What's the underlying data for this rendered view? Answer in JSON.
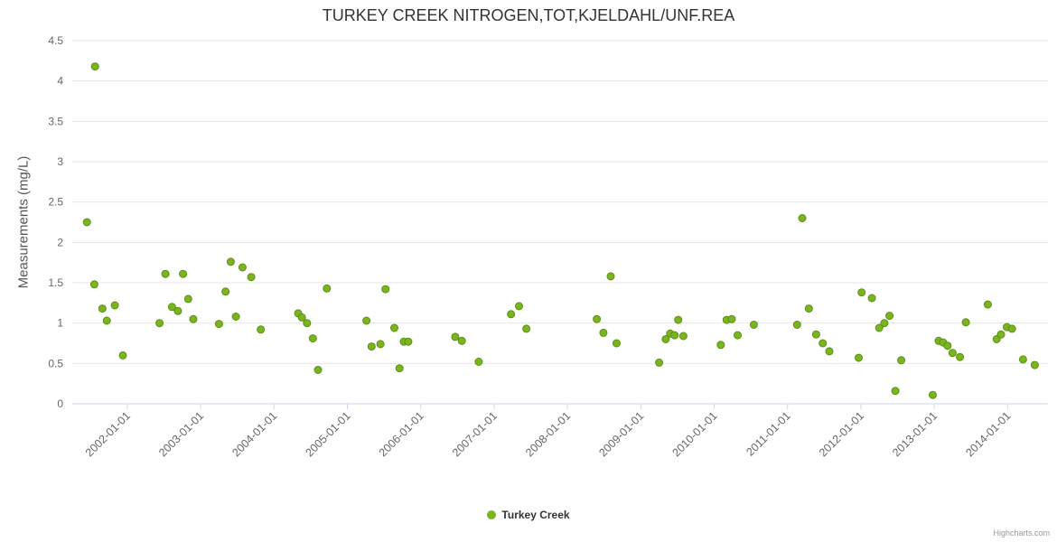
{
  "chart_data": {
    "type": "scatter",
    "title": "TURKEY CREEK NITROGEN,TOT,KJELDAHL/UNF.REA",
    "xlabel": "",
    "ylabel": "Measurements (mg/L)",
    "ylim": [
      0,
      4.5
    ],
    "yticks": [
      0,
      0.5,
      1,
      1.5,
      2,
      2.5,
      3,
      3.5,
      4,
      4.5
    ],
    "ytick_labels": [
      "0",
      "0.5",
      "1",
      "1.5",
      "2",
      "2.5",
      "3",
      "3.5",
      "4",
      "4.5"
    ],
    "xlim": [
      2001.25,
      2014.55
    ],
    "xticks": [
      2002,
      2003,
      2004,
      2005,
      2006,
      2007,
      2008,
      2009,
      2010,
      2011,
      2012,
      2013,
      2014
    ],
    "xtick_labels": [
      "2002-01-01",
      "2003-01-01",
      "2004-01-01",
      "2005-01-01",
      "2006-01-01",
      "2007-01-01",
      "2008-01-01",
      "2009-01-01",
      "2010-01-01",
      "2011-01-01",
      "2012-01-01",
      "2013-01-01",
      "2014-01-01"
    ],
    "grid": true,
    "legend_position": "bottom",
    "series": [
      {
        "name": "Turkey Creek",
        "color": "#7ab520",
        "points": [
          [
            2001.45,
            2.25
          ],
          [
            2001.55,
            1.48
          ],
          [
            2001.56,
            4.18
          ],
          [
            2001.66,
            1.18
          ],
          [
            2001.72,
            1.03
          ],
          [
            2001.83,
            1.22
          ],
          [
            2001.94,
            0.6
          ],
          [
            2002.44,
            1.0
          ],
          [
            2002.52,
            1.61
          ],
          [
            2002.61,
            1.2
          ],
          [
            2002.69,
            1.15
          ],
          [
            2002.76,
            1.61
          ],
          [
            2002.83,
            1.3
          ],
          [
            2002.9,
            1.05
          ],
          [
            2003.25,
            0.99
          ],
          [
            2003.34,
            1.39
          ],
          [
            2003.41,
            1.76
          ],
          [
            2003.48,
            1.08
          ],
          [
            2003.57,
            1.69
          ],
          [
            2003.69,
            1.57
          ],
          [
            2003.82,
            0.92
          ],
          [
            2004.33,
            1.12
          ],
          [
            2004.38,
            1.07
          ],
          [
            2004.45,
            1.0
          ],
          [
            2004.53,
            0.81
          ],
          [
            2004.6,
            0.42
          ],
          [
            2004.72,
            1.43
          ],
          [
            2005.26,
            1.03
          ],
          [
            2005.33,
            0.71
          ],
          [
            2005.45,
            0.74
          ],
          [
            2005.52,
            1.42
          ],
          [
            2005.64,
            0.94
          ],
          [
            2005.71,
            0.44
          ],
          [
            2005.77,
            0.77
          ],
          [
            2005.83,
            0.77
          ],
          [
            2006.47,
            0.83
          ],
          [
            2006.56,
            0.78
          ],
          [
            2006.79,
            0.52
          ],
          [
            2007.23,
            1.11
          ],
          [
            2007.34,
            1.21
          ],
          [
            2007.44,
            0.93
          ],
          [
            2008.4,
            1.05
          ],
          [
            2008.49,
            0.88
          ],
          [
            2008.59,
            1.58
          ],
          [
            2008.67,
            0.75
          ],
          [
            2009.25,
            0.51
          ],
          [
            2009.34,
            0.8
          ],
          [
            2009.4,
            0.87
          ],
          [
            2009.46,
            0.85
          ],
          [
            2009.51,
            1.04
          ],
          [
            2009.58,
            0.84
          ],
          [
            2010.09,
            0.73
          ],
          [
            2010.17,
            1.04
          ],
          [
            2010.24,
            1.05
          ],
          [
            2010.32,
            0.85
          ],
          [
            2010.54,
            0.98
          ],
          [
            2011.13,
            0.98
          ],
          [
            2011.2,
            2.3
          ],
          [
            2011.29,
            1.18
          ],
          [
            2011.39,
            0.86
          ],
          [
            2011.48,
            0.75
          ],
          [
            2011.57,
            0.65
          ],
          [
            2011.97,
            0.57
          ],
          [
            2012.01,
            1.38
          ],
          [
            2012.15,
            1.31
          ],
          [
            2012.25,
            0.94
          ],
          [
            2012.32,
            1.0
          ],
          [
            2012.39,
            1.09
          ],
          [
            2012.47,
            0.16
          ],
          [
            2012.55,
            0.54
          ],
          [
            2012.98,
            0.11
          ],
          [
            2013.06,
            0.78
          ],
          [
            2013.12,
            0.76
          ],
          [
            2013.18,
            0.72
          ],
          [
            2013.25,
            0.63
          ],
          [
            2013.35,
            0.58
          ],
          [
            2013.43,
            1.01
          ],
          [
            2013.73,
            1.23
          ],
          [
            2013.85,
            0.8
          ],
          [
            2013.91,
            0.86
          ],
          [
            2013.99,
            0.95
          ],
          [
            2014.06,
            0.93
          ],
          [
            2014.21,
            0.55
          ],
          [
            2014.37,
            0.48
          ]
        ]
      }
    ]
  },
  "legend": {
    "label": "Turkey Creek",
    "marker_color": "#7ab520"
  },
  "credits": {
    "text": "Highcharts.com"
  },
  "colors": {
    "title": "#333333",
    "axis_label": "#666666",
    "axis_title": "#555555",
    "gridline": "#e6e6e6",
    "axis_line": "#ccd6eb",
    "point_fill": "#7ab520",
    "point_stroke": "#5d8f14"
  }
}
